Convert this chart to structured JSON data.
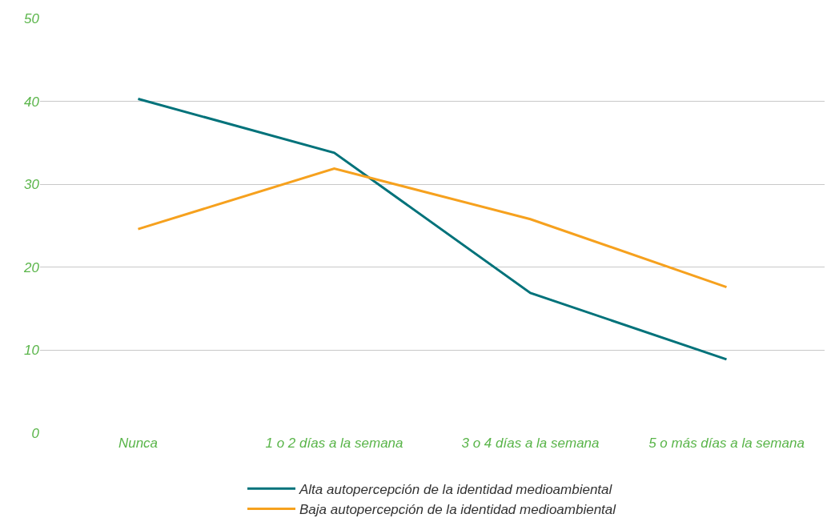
{
  "chart_data": {
    "type": "line",
    "categories": [
      "Nunca",
      "1 o 2 días a la semana",
      "3 o 4 días a la semana",
      "5 o más días a la semana"
    ],
    "series": [
      {
        "name": "Alta autopercepción de la identidad medioambiental",
        "color": "#00727a",
        "values": [
          40.3,
          33.8,
          16.9,
          8.9
        ]
      },
      {
        "name": "Baja autopercepción de la identidad medioambiental",
        "color": "#f6a11e",
        "values": [
          24.6,
          31.9,
          25.8,
          17.6
        ]
      }
    ],
    "ylim": [
      0,
      50
    ],
    "yticks": [
      0,
      10,
      20,
      30,
      40,
      50
    ],
    "grid": "y",
    "legend": "bottom",
    "marker": "none",
    "line_style": "solid"
  }
}
